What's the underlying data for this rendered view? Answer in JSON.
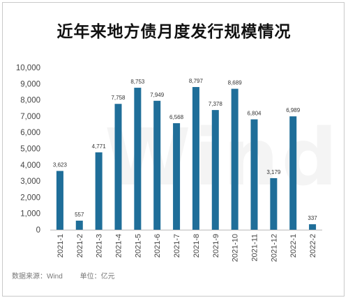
{
  "chart_data": {
    "type": "bar",
    "title": "近年来地方债月度发行规模情况",
    "categories": [
      "2021-1",
      "2021-2",
      "2021-3",
      "2021-4",
      "2021-5",
      "2021-6",
      "2021-7",
      "2021-8",
      "2021-9",
      "2021-10",
      "2021-11",
      "2021-12",
      "2022-1",
      "2022-2"
    ],
    "values": [
      3623,
      557,
      4771,
      7758,
      8753,
      7949,
      6568,
      8797,
      7378,
      8689,
      6804,
      3179,
      6989,
      337
    ],
    "value_labels": [
      "3,623",
      "557",
      "4,771",
      "7,758",
      "8,753",
      "7,949",
      "6,568",
      "8,797",
      "7,378",
      "8,689",
      "6,804",
      "3,179",
      "6,989",
      "337"
    ],
    "yticks": [
      0,
      1000,
      2000,
      3000,
      4000,
      5000,
      6000,
      7000,
      8000,
      9000,
      10000
    ],
    "ytick_labels": [
      "0",
      "1,000",
      "2,000",
      "3,000",
      "4,000",
      "5,000",
      "6,000",
      "7,000",
      "8,000",
      "9,000",
      "10,000"
    ],
    "ylim": [
      0,
      10000
    ],
    "grid": false,
    "bar_color": "#1f6e99"
  },
  "watermark": "Wind",
  "footer": {
    "source": "数据来源：Wind",
    "unit": "单位：亿元"
  }
}
